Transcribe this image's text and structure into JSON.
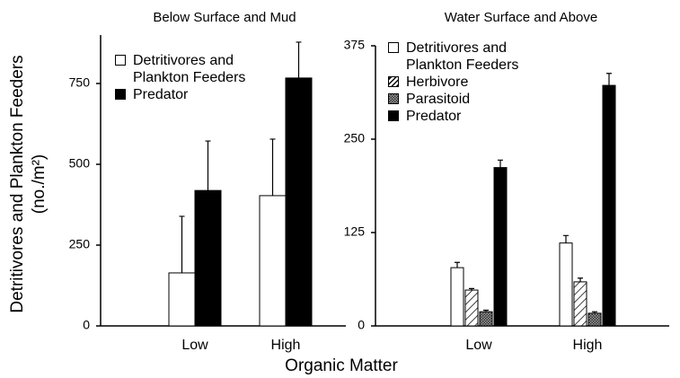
{
  "chart_data": [
    {
      "type": "bar",
      "title": "Below Surface and Mud",
      "categories": [
        "Low",
        "High"
      ],
      "series": [
        {
          "name": "Detritivores and Plankton Feeders",
          "color": "#ffffff",
          "pattern": "solid",
          "values": [
            164,
            403
          ],
          "errors": [
            175,
            175
          ]
        },
        {
          "name": "Predator",
          "color": "#000000",
          "pattern": "solid",
          "values": [
            419,
            767
          ],
          "errors": [
            153,
            111
          ]
        }
      ],
      "ylim": [
        0,
        900
      ],
      "yticks": [
        0,
        250,
        500,
        750
      ]
    },
    {
      "type": "bar",
      "title": "Water Surface and Above",
      "categories": [
        "Low",
        "High"
      ],
      "series": [
        {
          "name": "Detritivores and Plankton Feeders",
          "color": "#ffffff",
          "pattern": "solid",
          "values": [
            78,
            111
          ],
          "errors": [
            7,
            10
          ]
        },
        {
          "name": "Herbivore",
          "color": "#ffffff",
          "pattern": "hatch",
          "values": [
            48,
            59
          ],
          "errors": [
            2,
            5
          ]
        },
        {
          "name": "Parasitoid",
          "color": "#888888",
          "pattern": "checker",
          "values": [
            19,
            17
          ],
          "errors": [
            2,
            2
          ]
        },
        {
          "name": "Predator",
          "color": "#000000",
          "pattern": "solid",
          "values": [
            212,
            322
          ],
          "errors": [
            10,
            16
          ]
        }
      ],
      "ylim": [
        0,
        375
      ],
      "yticks": [
        0,
        125,
        250,
        375
      ]
    }
  ],
  "axis_labels": {
    "y": [
      "Detritivores and Plankton Feeders",
      "(no./m²)"
    ],
    "x": "Organic Matter"
  }
}
